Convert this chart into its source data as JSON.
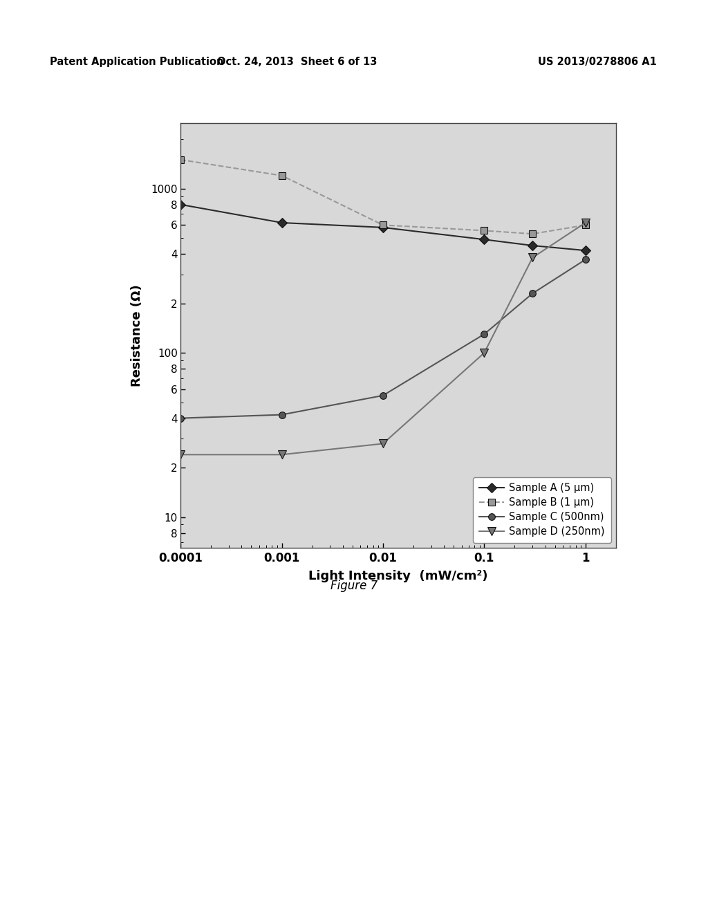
{
  "title": "",
  "xlabel": "Light Intensity  (mW/cm²)",
  "ylabel": "Resistance (Ω)",
  "figure_caption": "Figure 7",
  "header_left": "Patent Application Publication",
  "header_center": "Oct. 24, 2013  Sheet 6 of 13",
  "header_right": "US 2013/0278806 A1",
  "background_color": "#ffffff",
  "plot_bg_color": "#d8d8d8",
  "series": [
    {
      "label": "Sample A (5 μm)",
      "color": "#2a2a2a",
      "marker": "D",
      "marker_size": 7,
      "linestyle": "-",
      "linewidth": 1.5,
      "x": [
        0.0001,
        0.001,
        0.01,
        0.1,
        0.3,
        1.0
      ],
      "y": [
        800,
        620,
        580,
        490,
        450,
        420
      ]
    },
    {
      "label": "Sample B (1 μm)",
      "color": "#999999",
      "marker": "s",
      "marker_size": 7,
      "linestyle": "--",
      "linewidth": 1.5,
      "x": [
        0.0001,
        0.001,
        0.01,
        0.1,
        0.3,
        1.0
      ],
      "y": [
        1500,
        1200,
        600,
        555,
        530,
        600
      ]
    },
    {
      "label": "Sample C (500nm)",
      "color": "#555555",
      "marker": "o",
      "marker_size": 7,
      "linestyle": "-",
      "linewidth": 1.5,
      "x": [
        0.0001,
        0.001,
        0.01,
        0.1,
        0.3,
        1.0
      ],
      "y": [
        40,
        42,
        55,
        130,
        230,
        370
      ]
    },
    {
      "label": "Sample D (250nm)",
      "color": "#777777",
      "marker": "v",
      "marker_size": 8,
      "linestyle": "-",
      "linewidth": 1.5,
      "x": [
        0.0001,
        0.001,
        0.01,
        0.1,
        0.3,
        1.0
      ],
      "y": [
        24,
        24,
        28,
        100,
        380,
        620
      ]
    }
  ]
}
